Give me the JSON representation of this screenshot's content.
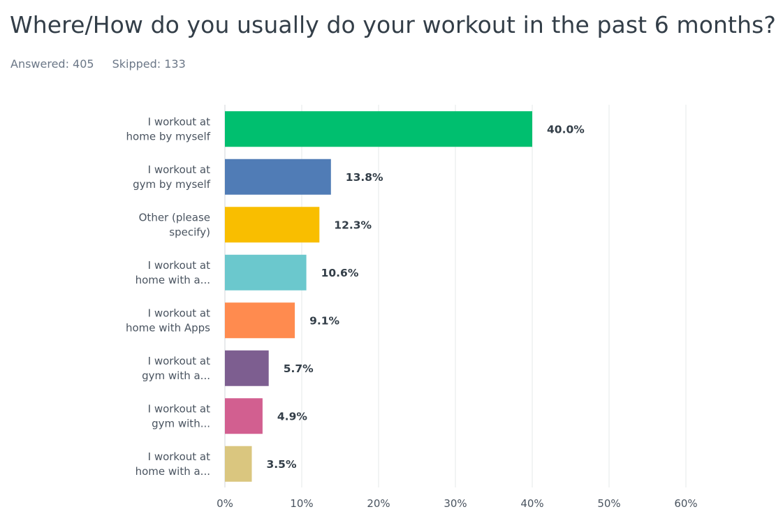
{
  "question": {
    "title": "Where/How do you usually do your workout in the past 6 months?",
    "answered": "Answered: 405",
    "skipped": "Skipped: 133"
  },
  "chart_data": {
    "type": "bar",
    "orientation": "horizontal",
    "categories": [
      [
        "I workout at",
        "home by myself"
      ],
      [
        "I workout at",
        "gym by myself"
      ],
      [
        "Other (please",
        "specify)"
      ],
      [
        "I workout at",
        "home with a..."
      ],
      [
        "I workout at",
        "home with Apps"
      ],
      [
        "I workout at",
        "gym with a..."
      ],
      [
        "I workout at",
        "gym with..."
      ],
      [
        "I workout at",
        "home with a..."
      ]
    ],
    "values": [
      40.0,
      13.8,
      12.3,
      10.6,
      9.1,
      5.7,
      4.9,
      3.5
    ],
    "value_labels": [
      "40.0%",
      "13.8%",
      "12.3%",
      "10.6%",
      "9.1%",
      "5.7%",
      "4.9%",
      "3.5%"
    ],
    "colors": [
      "#00bf6f",
      "#507cb6",
      "#f9be00",
      "#6bc8cd",
      "#ff8b4f",
      "#7d5e90",
      "#d25f90",
      "#dac67f"
    ],
    "xlim": [
      0,
      60
    ],
    "ticks": [
      0,
      10,
      20,
      30,
      40,
      50,
      60
    ],
    "tick_labels": [
      "0%",
      "10%",
      "20%",
      "30%",
      "40%",
      "50%",
      "60%"
    ],
    "grid": true,
    "gridline_color": "#e6e8ea",
    "axis_color": "#d0d4d8"
  }
}
